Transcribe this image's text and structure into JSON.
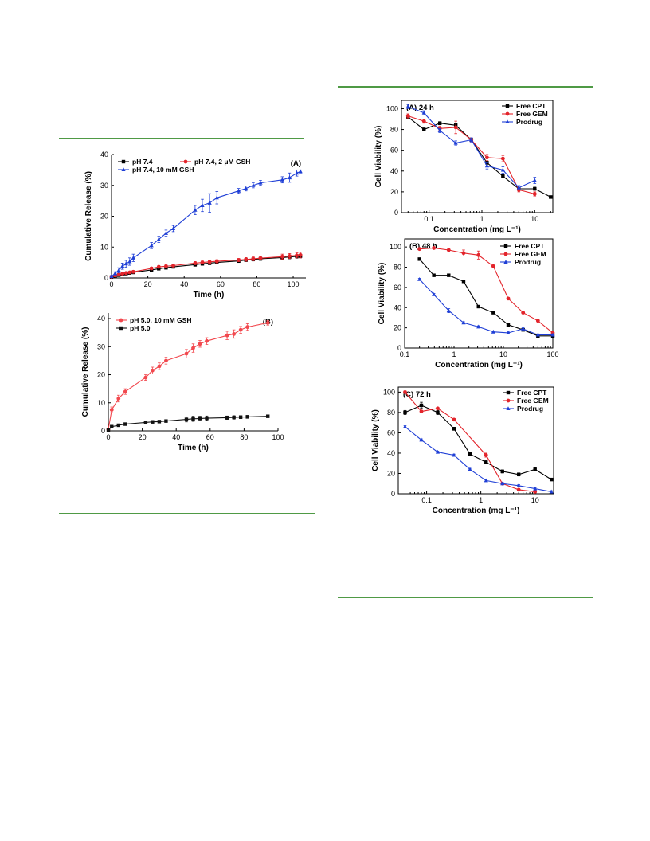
{
  "page": {
    "rule_color": "#4f9a45"
  },
  "chart_data": [
    {
      "id": "release-a",
      "type": "line",
      "panel_label": "(A)",
      "xlabel": "Time (h)",
      "ylabel": "Cumulative Release (%)",
      "xlim": [
        0,
        107
      ],
      "ylim": [
        0,
        40
      ],
      "xticks": [
        0,
        20,
        40,
        60,
        80,
        100
      ],
      "yticks": [
        0,
        10,
        20,
        30,
        40
      ],
      "grid": false,
      "legend_position": "top-left",
      "series": [
        {
          "name": "pH 7.4",
          "color": "#000000",
          "marker": "square",
          "x": [
            0,
            2,
            4,
            6,
            8,
            10,
            12,
            22,
            26,
            30,
            34,
            46,
            50,
            54,
            58,
            70,
            74,
            78,
            82,
            94,
            98,
            102,
            104
          ],
          "y": [
            0.3,
            0.6,
            0.9,
            1.2,
            1.4,
            1.6,
            1.8,
            2.6,
            3.0,
            3.3,
            3.6,
            4.3,
            4.6,
            4.8,
            5.0,
            5.5,
            5.8,
            6.0,
            6.2,
            6.6,
            6.8,
            7.0,
            7.1
          ],
          "err": [
            0.2,
            0.2,
            0.2,
            0.3,
            0.3,
            0.3,
            0.3,
            0.4,
            0.4,
            0.4,
            0.4,
            0.5,
            0.5,
            0.5,
            0.5,
            0.5,
            0.5,
            0.5,
            0.5,
            0.6,
            0.6,
            0.6,
            0.6
          ]
        },
        {
          "name": "pH 7.4, 2 μM GSH",
          "color": "#e3242b",
          "marker": "circle",
          "x": [
            0,
            2,
            4,
            6,
            8,
            10,
            12,
            22,
            26,
            30,
            34,
            46,
            50,
            54,
            58,
            70,
            74,
            78,
            82,
            94,
            98,
            102,
            104
          ],
          "y": [
            0.4,
            0.8,
            1.1,
            1.4,
            1.6,
            1.8,
            2.0,
            3.1,
            3.6,
            3.8,
            4.0,
            4.8,
            5.0,
            5.2,
            5.4,
            5.8,
            6.0,
            6.2,
            6.4,
            6.9,
            7.1,
            7.3,
            7.4
          ],
          "err": [
            0.2,
            0.2,
            0.3,
            0.3,
            0.3,
            0.3,
            0.3,
            0.4,
            0.4,
            0.4,
            0.4,
            0.5,
            0.5,
            0.5,
            0.5,
            0.5,
            0.6,
            0.6,
            0.6,
            0.8,
            0.8,
            0.8,
            0.9
          ]
        },
        {
          "name": "pH 7.4, 10 mM GSH",
          "color": "#1f3fd6",
          "marker": "triangle",
          "x": [
            0,
            2,
            4,
            6,
            8,
            10,
            12,
            22,
            26,
            30,
            34,
            46,
            50,
            54,
            58,
            70,
            74,
            78,
            82,
            94,
            98,
            102,
            104
          ],
          "y": [
            0.5,
            1.5,
            2.5,
            3.8,
            4.6,
            5.3,
            6.5,
            10.5,
            12.5,
            14.5,
            16.0,
            22.0,
            23.5,
            24.3,
            26.0,
            28.2,
            29.0,
            30.0,
            30.8,
            31.8,
            32.5,
            34.0,
            34.5
          ],
          "err": [
            0.3,
            0.5,
            0.8,
            1.0,
            1.1,
            1.2,
            1.2,
            1.0,
            1.0,
            1.0,
            1.0,
            1.5,
            2.0,
            3.0,
            2.0,
            0.8,
            0.8,
            0.8,
            0.8,
            1.0,
            1.5,
            1.0,
            0.5
          ]
        }
      ]
    },
    {
      "id": "release-b",
      "type": "line",
      "panel_label": "(B)",
      "xlabel": "Time (h)",
      "ylabel": "Cumulative Release (%)",
      "xlim": [
        0,
        100
      ],
      "ylim": [
        0,
        42
      ],
      "xticks": [
        0,
        20,
        40,
        60,
        80,
        100
      ],
      "yticks": [
        0,
        10,
        20,
        30,
        40
      ],
      "grid": false,
      "legend_position": "top-left",
      "series": [
        {
          "name": "pH 5.0, 10 mM GSH",
          "color": "#f2484e",
          "marker": "circle",
          "x": [
            0,
            2,
            6,
            10,
            22,
            26,
            30,
            34,
            46,
            50,
            54,
            58,
            70,
            74,
            78,
            82,
            94
          ],
          "y": [
            0.5,
            7.5,
            11.5,
            14.0,
            19.0,
            21.5,
            23.0,
            25.0,
            27.5,
            29.5,
            31.0,
            32.0,
            34.0,
            34.5,
            36.0,
            37.0,
            38.5
          ],
          "err": [
            0.3,
            1.0,
            1.2,
            1.0,
            1.0,
            1.2,
            1.2,
            1.2,
            1.5,
            1.5,
            1.2,
            1.2,
            1.5,
            1.5,
            1.2,
            1.2,
            0.8
          ]
        },
        {
          "name": "pH 5.0",
          "color": "#111111",
          "marker": "square",
          "x": [
            0,
            2,
            6,
            10,
            22,
            26,
            30,
            34,
            46,
            50,
            54,
            58,
            70,
            74,
            78,
            82,
            94
          ],
          "y": [
            0.3,
            1.5,
            2.0,
            2.4,
            3.0,
            3.2,
            3.3,
            3.5,
            4.1,
            4.3,
            4.4,
            4.5,
            4.7,
            4.8,
            4.9,
            5.0,
            5.2
          ],
          "err": [
            0.2,
            0.3,
            0.3,
            0.3,
            0.4,
            0.4,
            0.4,
            0.4,
            0.9,
            0.9,
            0.8,
            0.8,
            0.6,
            0.6,
            0.5,
            0.5,
            0.4
          ]
        }
      ]
    },
    {
      "id": "viability-24h",
      "type": "line",
      "panel_label": "(A) 24 h",
      "xlabel": "Concentration (mg L⁻¹)",
      "ylabel": "Cell Viability (%)",
      "xscale": "log",
      "xlim": [
        0.03,
        22
      ],
      "ylim": [
        0,
        108
      ],
      "xticks": [
        0.1,
        1,
        10
      ],
      "xtick_labels": [
        "0.1",
        "1",
        "10"
      ],
      "yticks": [
        0,
        20,
        40,
        60,
        80,
        100
      ],
      "grid": false,
      "legend_position": "top-right",
      "series": [
        {
          "name": "Free CPT",
          "color": "#000000",
          "marker": "square",
          "x": [
            0.04,
            0.08,
            0.16,
            0.32,
            0.63,
            1.25,
            2.5,
            5,
            10,
            20
          ],
          "y": [
            92,
            80,
            86,
            84,
            70,
            48,
            35,
            23,
            23,
            15
          ],
          "err": [
            2,
            1.5,
            1.5,
            1.5,
            1.5,
            1.5,
            1.5,
            1.5,
            1.5,
            1
          ]
        },
        {
          "name": "Free GEM",
          "color": "#e3242b",
          "marker": "circle",
          "x": [
            0.04,
            0.08,
            0.16,
            0.32,
            0.63,
            1.25,
            2.5,
            5,
            10
          ],
          "y": [
            93,
            88,
            81,
            82,
            70,
            53,
            52,
            22,
            18
          ],
          "err": [
            2,
            2,
            2,
            6,
            2,
            3,
            3,
            2,
            2
          ]
        },
        {
          "name": "Prodrug",
          "color": "#1f3fd6",
          "marker": "triangle",
          "x": [
            0.04,
            0.08,
            0.16,
            0.32,
            0.63,
            1.25,
            2.5,
            5,
            10
          ],
          "y": [
            102,
            96,
            79,
            67,
            70,
            45,
            41,
            24,
            31
          ],
          "err": [
            2,
            2,
            2,
            2,
            2,
            3,
            3,
            2,
            3
          ]
        }
      ]
    },
    {
      "id": "viability-48h",
      "type": "line",
      "panel_label": "(B) 48 h",
      "xlabel": "Concentration (mg L⁻¹)",
      "ylabel": "Cell Viability (%)",
      "xscale": "log",
      "xlim": [
        0.1,
        100
      ],
      "ylim": [
        0,
        108
      ],
      "xticks": [
        0.1,
        1,
        10,
        100
      ],
      "xtick_labels": [
        "0.1",
        "1",
        "10",
        "100"
      ],
      "yticks": [
        0,
        20,
        40,
        60,
        80,
        100
      ],
      "grid": false,
      "legend_position": "top-right",
      "series": [
        {
          "name": "Free CPT",
          "color": "#000000",
          "marker": "square",
          "x": [
            0.2,
            0.39,
            0.78,
            1.56,
            3.13,
            6.25,
            12.5,
            25,
            50,
            100
          ],
          "y": [
            88,
            72,
            72,
            66,
            41,
            35,
            23,
            18,
            12,
            12
          ],
          "err": [
            1,
            1,
            1,
            1,
            1,
            1,
            1,
            1,
            1,
            1
          ]
        },
        {
          "name": "Free GEM",
          "color": "#e3242b",
          "marker": "circle",
          "x": [
            0.2,
            0.39,
            0.78,
            1.56,
            3.13,
            6.25,
            12.5,
            25,
            50,
            100
          ],
          "y": [
            98,
            99,
            97,
            94,
            92,
            81,
            49,
            35,
            27,
            15
          ],
          "err": [
            1,
            1,
            2,
            3,
            4,
            1,
            1,
            1,
            1,
            1
          ]
        },
        {
          "name": "Prodrug",
          "color": "#1f3fd6",
          "marker": "triangle",
          "x": [
            0.2,
            0.39,
            0.78,
            1.56,
            3.13,
            6.25,
            12.5,
            25,
            50,
            100
          ],
          "y": [
            68,
            53,
            37,
            25,
            21,
            16,
            15,
            19,
            13,
            13
          ],
          "err": [
            1,
            1,
            2,
            1,
            1,
            1,
            1,
            1,
            1,
            1
          ]
        }
      ]
    },
    {
      "id": "viability-72h",
      "type": "line",
      "panel_label": "(C) 72 h",
      "xlabel": "Concentration (mg L⁻¹)",
      "ylabel": "Cell Viability (%)",
      "xscale": "log",
      "xlim": [
        0.03,
        22
      ],
      "ylim": [
        0,
        105
      ],
      "xticks": [
        0.1,
        1,
        10
      ],
      "xtick_labels": [
        "0.1",
        "1",
        "10"
      ],
      "yticks": [
        0,
        20,
        40,
        60,
        80,
        100
      ],
      "grid": false,
      "legend_position": "top-right",
      "series": [
        {
          "name": "Free CPT",
          "color": "#000000",
          "marker": "square",
          "x": [
            0.04,
            0.08,
            0.16,
            0.32,
            0.63,
            1.25,
            2.5,
            5,
            10,
            20
          ],
          "y": [
            80,
            87,
            80,
            64,
            39,
            31,
            22,
            19,
            24,
            14
          ],
          "err": [
            2,
            3,
            2,
            1.5,
            1.5,
            1.5,
            1.5,
            1.5,
            1.5,
            1
          ]
        },
        {
          "name": "Free GEM",
          "color": "#e3242b",
          "marker": "circle",
          "x": [
            0.04,
            0.08,
            0.16,
            0.32,
            1.25,
            2.5,
            5,
            10
          ],
          "y": [
            100,
            81,
            84,
            73,
            38,
            10,
            4,
            2
          ],
          "err": [
            1,
            1,
            1,
            1,
            2,
            1,
            1,
            1
          ]
        },
        {
          "name": "Prodrug",
          "color": "#1f3fd6",
          "marker": "triangle",
          "x": [
            0.04,
            0.08,
            0.16,
            0.32,
            0.63,
            1.25,
            2.5,
            5,
            10,
            20
          ],
          "y": [
            66,
            53,
            41,
            38,
            24,
            13,
            10,
            8,
            5,
            2
          ],
          "err": [
            1,
            1,
            1,
            1,
            1,
            1,
            1,
            1,
            1,
            1
          ]
        }
      ]
    }
  ]
}
